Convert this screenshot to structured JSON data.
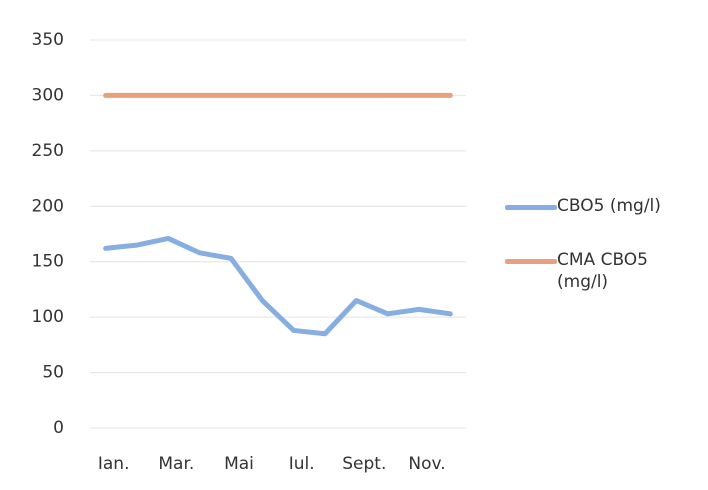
{
  "chart_data": {
    "type": "line",
    "categories": [
      "Ian.",
      null,
      "Mar.",
      null,
      "Mai",
      null,
      "Iul.",
      null,
      "Sept.",
      null,
      "Nov.",
      null
    ],
    "series": [
      {
        "name": "CBO5 (mg/l)",
        "color": "#86aee0",
        "values": [
          162,
          165,
          171,
          158,
          153,
          115,
          88,
          85,
          115,
          103,
          107,
          103
        ]
      },
      {
        "name": "CMA CBO5 (mg/l)",
        "color": "#e8a07f",
        "values": [
          300,
          300,
          300,
          300,
          300,
          300,
          300,
          300,
          300,
          300,
          300,
          300
        ]
      }
    ],
    "ylim": [
      0,
      350
    ],
    "yticks": [
      0,
      50,
      100,
      150,
      200,
      250,
      300,
      350
    ],
    "grid": true,
    "legend": "right"
  }
}
